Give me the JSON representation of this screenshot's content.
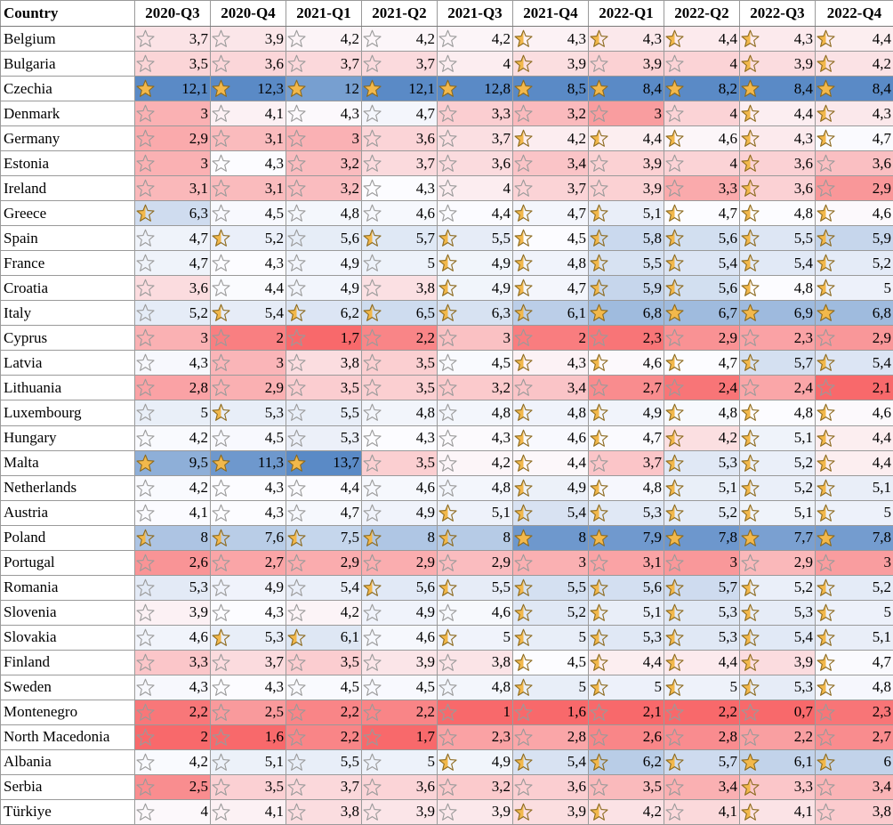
{
  "header": {
    "country": "Country",
    "quarters": [
      "2020-Q3",
      "2020-Q4",
      "2021-Q1",
      "2021-Q2",
      "2021-Q3",
      "2021-Q4",
      "2022-Q1",
      "2022-Q2",
      "2022-Q3",
      "2022-Q4"
    ]
  },
  "rows": [
    {
      "country": "Belgium",
      "values": [
        "3,7",
        "3,9",
        "4,2",
        "4,2",
        "4,2",
        "4,3",
        "4,3",
        "4,4",
        "4,3",
        "4,4"
      ]
    },
    {
      "country": "Bulgaria",
      "values": [
        "3,5",
        "3,6",
        "3,7",
        "3,7",
        "4",
        "3,9",
        "3,9",
        "4",
        "3,9",
        "4,2"
      ]
    },
    {
      "country": "Czechia",
      "values": [
        "12,1",
        "12,3",
        "12",
        "12,1",
        "12,8",
        "8,5",
        "8,4",
        "8,2",
        "8,4",
        "8,4"
      ]
    },
    {
      "country": "Denmark",
      "values": [
        "3",
        "4,1",
        "4,3",
        "4,7",
        "3,3",
        "3,2",
        "3",
        "4",
        "4,4",
        "4,3"
      ]
    },
    {
      "country": "Germany",
      "values": [
        "2,9",
        "3,1",
        "3",
        "3,6",
        "3,7",
        "4,2",
        "4,4",
        "4,6",
        "4,3",
        "4,7"
      ]
    },
    {
      "country": "Estonia",
      "values": [
        "3",
        "4,3",
        "3,2",
        "3,7",
        "3,6",
        "3,4",
        "3,9",
        "4",
        "3,6",
        "3,6"
      ]
    },
    {
      "country": "Ireland",
      "values": [
        "3,1",
        "3,1",
        "3,2",
        "4,3",
        "4",
        "3,7",
        "3,9",
        "3,3",
        "3,6",
        "2,9"
      ]
    },
    {
      "country": "Greece",
      "values": [
        "6,3",
        "4,5",
        "4,8",
        "4,6",
        "4,4",
        "4,7",
        "5,1",
        "4,7",
        "4,8",
        "4,6"
      ]
    },
    {
      "country": "Spain",
      "values": [
        "4,7",
        "5,2",
        "5,6",
        "5,7",
        "5,5",
        "4,5",
        "5,8",
        "5,6",
        "5,5",
        "5,9"
      ]
    },
    {
      "country": "France",
      "values": [
        "4,7",
        "4,3",
        "4,9",
        "5",
        "4,9",
        "4,8",
        "5,5",
        "5,4",
        "5,4",
        "5,2"
      ]
    },
    {
      "country": "Croatia",
      "values": [
        "3,6",
        "4,4",
        "4,9",
        "3,8",
        "4,9",
        "4,7",
        "5,9",
        "5,6",
        "4,8",
        "5"
      ]
    },
    {
      "country": "Italy",
      "values": [
        "5,2",
        "5,4",
        "6,2",
        "6,5",
        "6,3",
        "6,1",
        "6,8",
        "6,7",
        "6,9",
        "6,8"
      ]
    },
    {
      "country": "Cyprus",
      "values": [
        "3",
        "2",
        "1,7",
        "2,2",
        "3",
        "2",
        "2,3",
        "2,9",
        "2,3",
        "2,9"
      ]
    },
    {
      "country": "Latvia",
      "values": [
        "4,3",
        "3",
        "3,8",
        "3,5",
        "4,5",
        "4,3",
        "4,6",
        "4,7",
        "5,7",
        "5,4"
      ]
    },
    {
      "country": "Lithuania",
      "values": [
        "2,8",
        "2,9",
        "3,5",
        "3,5",
        "3,2",
        "3,4",
        "2,7",
        "2,4",
        "2,4",
        "2,1"
      ]
    },
    {
      "country": "Luxembourg",
      "values": [
        "5",
        "5,3",
        "5,5",
        "4,8",
        "4,8",
        "4,8",
        "4,9",
        "4,8",
        "4,8",
        "4,6"
      ]
    },
    {
      "country": "Hungary",
      "values": [
        "4,2",
        "4,5",
        "5,3",
        "4,3",
        "4,3",
        "4,6",
        "4,7",
        "4,2",
        "5,1",
        "4,4"
      ]
    },
    {
      "country": "Malta",
      "values": [
        "9,5",
        "11,3",
        "13,7",
        "3,5",
        "4,2",
        "4,4",
        "3,7",
        "5,3",
        "5,2",
        "4,4"
      ]
    },
    {
      "country": "Netherlands",
      "values": [
        "4,2",
        "4,3",
        "4,4",
        "4,6",
        "4,8",
        "4,9",
        "4,8",
        "5,1",
        "5,2",
        "5,1"
      ]
    },
    {
      "country": "Austria",
      "values": [
        "4,1",
        "4,3",
        "4,7",
        "4,9",
        "5,1",
        "5,4",
        "5,3",
        "5,2",
        "5,1",
        "5"
      ]
    },
    {
      "country": "Poland",
      "values": [
        "8",
        "7,6",
        "7,5",
        "8",
        "8",
        "8",
        "7,9",
        "7,8",
        "7,7",
        "7,8"
      ]
    },
    {
      "country": "Portugal",
      "values": [
        "2,6",
        "2,7",
        "2,9",
        "2,9",
        "2,9",
        "3",
        "3,1",
        "3",
        "2,9",
        "3"
      ]
    },
    {
      "country": "Romania",
      "values": [
        "5,3",
        "4,9",
        "5,4",
        "5,6",
        "5,5",
        "5,5",
        "5,6",
        "5,7",
        "5,2",
        "5,2"
      ]
    },
    {
      "country": "Slovenia",
      "values": [
        "3,9",
        "4,3",
        "4,2",
        "4,9",
        "4,6",
        "5,2",
        "5,1",
        "5,3",
        "5,3",
        "5"
      ]
    },
    {
      "country": "Slovakia",
      "values": [
        "4,6",
        "5,3",
        "6,1",
        "4,6",
        "5",
        "5",
        "5,3",
        "5,3",
        "5,4",
        "5,1"
      ]
    },
    {
      "country": "Finland",
      "values": [
        "3,3",
        "3,7",
        "3,5",
        "3,9",
        "3,8",
        "4,5",
        "4,4",
        "4,4",
        "3,9",
        "4,7"
      ]
    },
    {
      "country": "Sweden",
      "values": [
        "4,3",
        "4,3",
        "4,5",
        "4,5",
        "4,8",
        "5",
        "5",
        "5",
        "5,3",
        "4,8"
      ]
    },
    {
      "country": "Montenegro",
      "values": [
        "2,2",
        "2,5",
        "2,2",
        "2,2",
        "1",
        "1,6",
        "2,1",
        "2,2",
        "0,7",
        "2,3"
      ]
    },
    {
      "country": "North Macedonia",
      "values": [
        "2",
        "1,6",
        "2,2",
        "1,7",
        "2,3",
        "2,8",
        "2,6",
        "2,8",
        "2,2",
        "2,7"
      ]
    },
    {
      "country": "Albania",
      "values": [
        "4,2",
        "5,1",
        "5,5",
        "5",
        "4,9",
        "5,4",
        "6,2",
        "5,7",
        "6,1",
        "6"
      ]
    },
    {
      "country": "Serbia",
      "values": [
        "2,5",
        "3,5",
        "3,7",
        "3,6",
        "3,2",
        "3,6",
        "3,5",
        "3,4",
        "3,3",
        "3,4"
      ]
    },
    {
      "country": "Türkiye",
      "values": [
        "4",
        "4,1",
        "3,8",
        "3,9",
        "3,9",
        "3,9",
        "4,2",
        "4,1",
        "4,1",
        "3,8"
      ]
    }
  ],
  "colors": {
    "low": "#f8696b",
    "mid": "#fcfcff",
    "high": "#5a8ac6",
    "star_fill": "#f2b84b",
    "star_outline": "#9a9a9a",
    "star_outline_filled": "#8c6a1e"
  },
  "icons": {
    "rating": "star-icon"
  }
}
